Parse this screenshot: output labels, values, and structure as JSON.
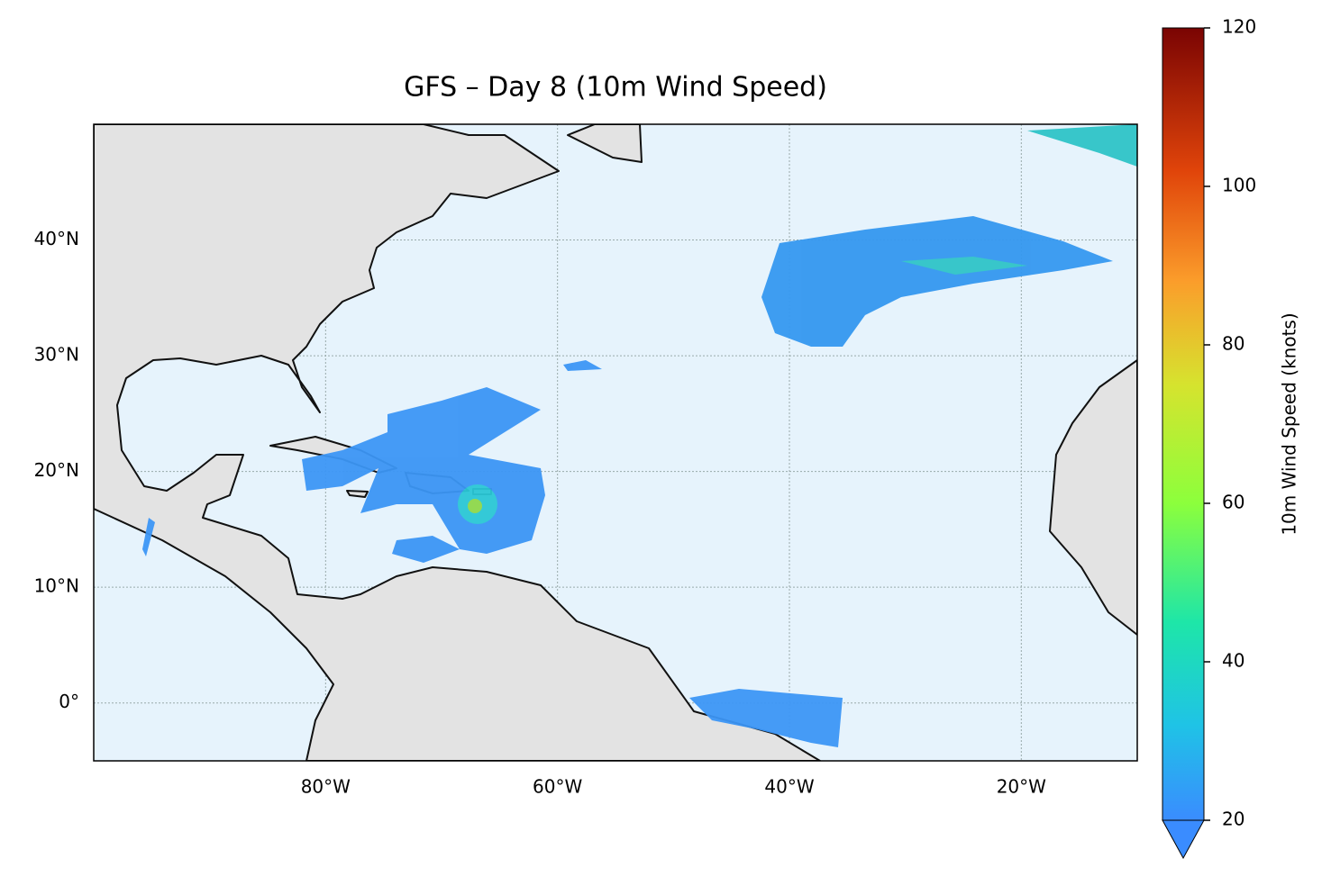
{
  "map": {
    "title": "GFS – Day 8 (10m Wind Speed)",
    "xlim": [
      -100,
      -10
    ],
    "ylim": [
      -5,
      50
    ],
    "xticks": [
      {
        "value": -80,
        "label": "80°W"
      },
      {
        "value": -60,
        "label": "60°W"
      },
      {
        "value": -40,
        "label": "40°W"
      },
      {
        "value": -20,
        "label": "20°W"
      }
    ],
    "yticks": [
      {
        "value": 0,
        "label": "0°"
      },
      {
        "value": 10,
        "label": "10°N"
      },
      {
        "value": 20,
        "label": "20°N"
      },
      {
        "value": 30,
        "label": "30°N"
      },
      {
        "value": 40,
        "label": "40°N"
      }
    ],
    "grid": true,
    "colorbar": {
      "label": "10m Wind Speed (knots)",
      "lim": [
        20,
        120
      ],
      "ticks": [
        20,
        40,
        60,
        80,
        100,
        120
      ]
    }
  }
}
